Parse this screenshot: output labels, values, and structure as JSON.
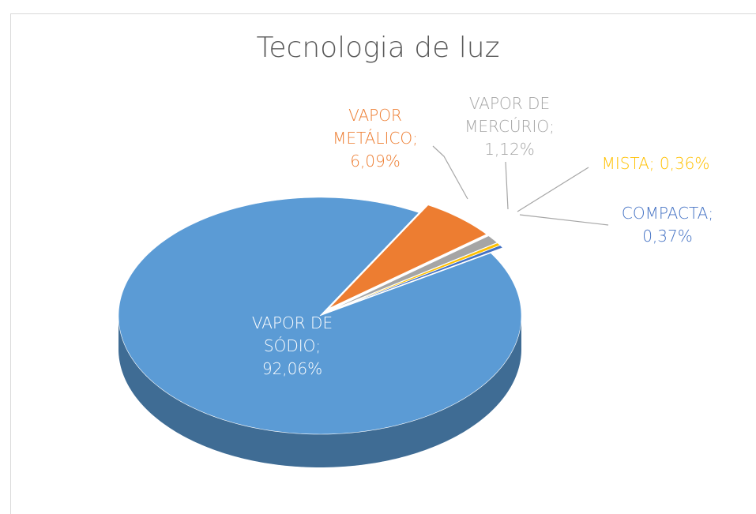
{
  "chart_data": {
    "type": "pie",
    "title": "Tecnologia de luz",
    "categories": [
      "VAPOR DE SÓDIO",
      "VAPOR METÁLICO",
      "VAPOR DE MERCÚRIO",
      "MISTA",
      "COMPACTA"
    ],
    "values": [
      92.06,
      6.09,
      1.12,
      0.36,
      0.37
    ],
    "value_labels": [
      "92,06%",
      "6,09%",
      "1,12%",
      "0,36%",
      "0,37%"
    ],
    "label_separator": ";",
    "colors": [
      "#5b9bd5",
      "#ed7d31",
      "#a5a5a5",
      "#ffc000",
      "#4472c4"
    ]
  }
}
